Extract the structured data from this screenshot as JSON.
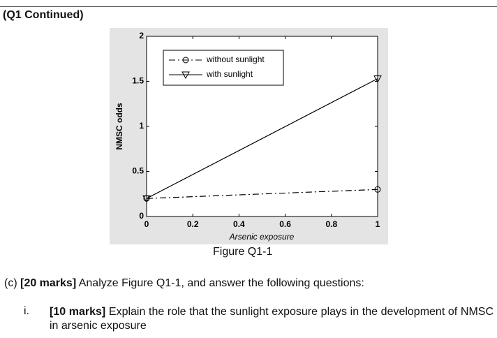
{
  "header": "(Q1 Continued)",
  "chart_data": {
    "type": "line",
    "xlabel": "Arsenic exposure",
    "ylabel": "NMSC odds",
    "x": [
      0,
      1
    ],
    "series": [
      {
        "name": "without sunlight",
        "color": "#000000",
        "dash": "dashdot",
        "marker": "circle",
        "values": [
          0.2,
          0.3
        ]
      },
      {
        "name": "with sunlight",
        "color": "#000000",
        "dash": "solid",
        "marker": "triangle-down",
        "values": [
          0.2,
          1.53
        ]
      }
    ],
    "xlim": [
      0,
      1
    ],
    "xticks": [
      0,
      0.2,
      0.4,
      0.6,
      0.8,
      1
    ],
    "ylim": [
      0,
      2
    ],
    "yticks": [
      0,
      0.5,
      1,
      1.5,
      2
    ],
    "legend": "upper-left"
  },
  "caption": "Figure Q1-1",
  "question": {
    "label": "(c)",
    "marks": "[20 marks]",
    "text": "Analyze Figure Q1-1, and answer the following questions:"
  },
  "items": [
    {
      "label": "i.",
      "marks": "[10 marks]",
      "text": "Explain the role that the sunlight exposure plays in the development of NMSC in arsenic exposure"
    }
  ]
}
